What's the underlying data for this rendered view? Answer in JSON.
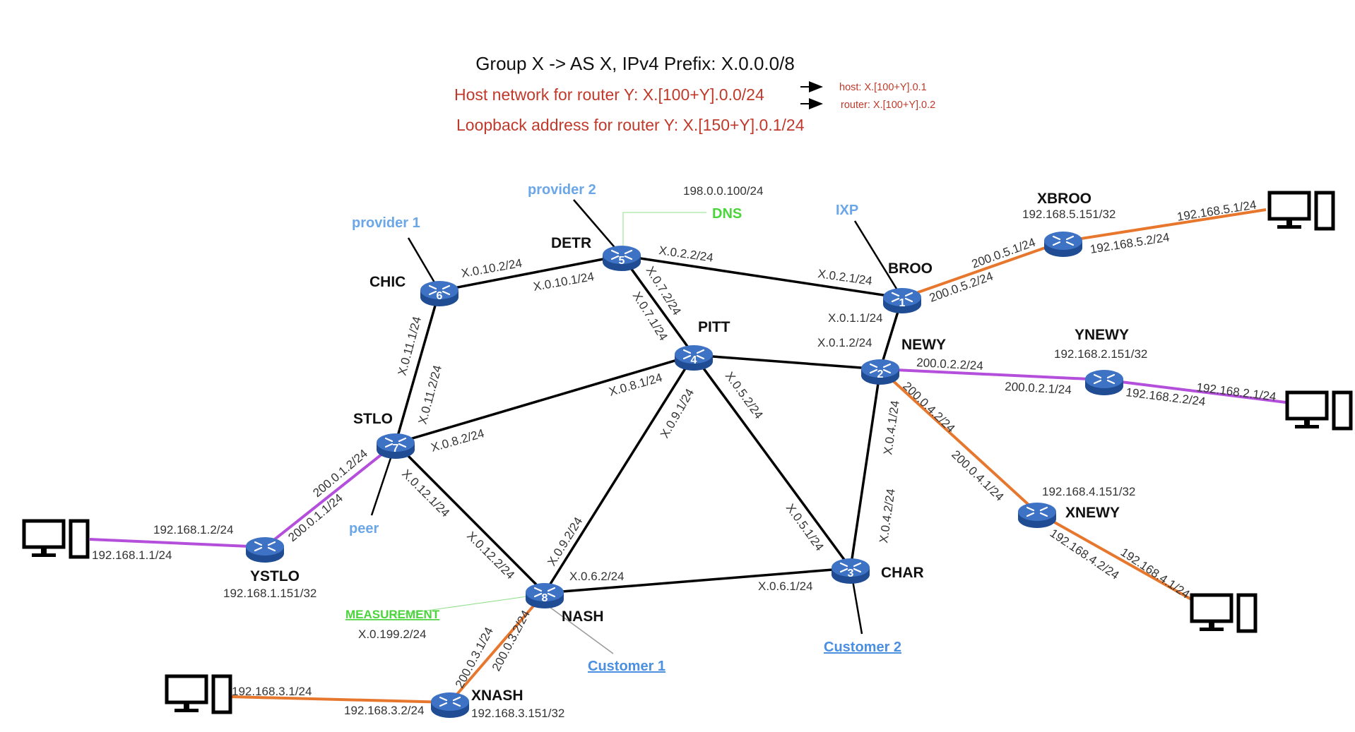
{
  "header": {
    "title": "Group X -> AS X, IPv4 Prefix: X.0.0.0/8",
    "host_network": "Host network for router Y: X.[100+Y].0.0/24",
    "host_note": "host: X.[100+Y].0.1",
    "router_note": "router: X.[100+Y].0.2",
    "loopback": "Loopback address for router Y: X.[150+Y].0.1/24"
  },
  "colors": {
    "internal_link": "#000000",
    "orange_link": "#e8772e",
    "purple_link": "#b44fdb",
    "router_body": "#2f63b3",
    "external_label": "#6aa6e8",
    "green_label": "#4cd43c",
    "header_red": "#c0392b"
  },
  "routers": {
    "broo": {
      "name": "BROO",
      "num": "1"
    },
    "newy": {
      "name": "NEWY",
      "num": "2"
    },
    "char": {
      "name": "CHAR",
      "num": "3"
    },
    "pitt": {
      "name": "PITT",
      "num": "4"
    },
    "detr": {
      "name": "DETR",
      "num": "5"
    },
    "chic": {
      "name": "CHIC",
      "num": "6"
    },
    "stlo": {
      "name": "STLO",
      "num": "7"
    },
    "nash": {
      "name": "NASH",
      "num": "8"
    },
    "xbroo": {
      "name": "XBROO",
      "loop": "192.168.5.151/32"
    },
    "ynewy": {
      "name": "YNEWY",
      "loop": "192.168.2.151/32"
    },
    "xnewy": {
      "name": "XNEWY",
      "loop": "192.168.4.151/32"
    },
    "ystlo": {
      "name": "YSTLO",
      "loop": "192.168.1.151/32"
    },
    "xnash": {
      "name": "XNASH",
      "loop": "192.168.3.151/32"
    }
  },
  "externals": {
    "provider1": "provider 1",
    "provider2": "provider 2",
    "ixp": "IXP",
    "peer": "peer",
    "customer1": "Customer 1",
    "customer2": "Customer 2",
    "dns": "DNS",
    "dns_ip": "198.0.0.100/24",
    "measurement": "MEASUREMENT",
    "measurement_ip": "X.0.199.2/24"
  },
  "links": {
    "chic_detr_a": "X.0.10.2/24",
    "chic_detr_b": "X.0.10.1/24",
    "detr_broo_a": "X.0.2.2/24",
    "detr_broo_b": "X.0.2.1/24",
    "detr_pitt_a": "X.0.7.2/24",
    "detr_pitt_b": "X.0.7.1/24",
    "broo_newy_a": "X.0.1.1/24",
    "broo_newy_b": "X.0.1.2/24",
    "chic_stlo_a": "X.0.11.1/24",
    "chic_stlo_b": "X.0.11.2/24",
    "stlo_pitt_a": "X.0.8.1/24",
    "stlo_pitt_b": "X.0.8.2/24",
    "pitt_nash_a": "X.0.9.1/24",
    "pitt_nash_b": "X.0.9.2/24",
    "pitt_char": "X.0.5.2/24",
    "newy_char_a": "X.0.4.1/24",
    "newy_char_b": "X.0.4.2/24",
    "char_pitt": "X.0.5.1/24",
    "stlo_nash_a": "X.0.12.1/24",
    "stlo_nash_b": "X.0.12.2/24",
    "nash_char_a": "X.0.6.2/24",
    "nash_char_b": "X.0.6.1/24",
    "broo_xbroo_a": "200.0.5.1/24",
    "broo_xbroo_b": "200.0.5.2/24",
    "xbroo_host_a": "192.168.5.1/24",
    "xbroo_host_b": "192.168.5.2/24",
    "newy_ynewy_a": "200.0.2.2/24",
    "newy_ynewy_b": "200.0.2.1/24",
    "ynewy_host_a": "192.168.2.1/24",
    "ynewy_host_b": "192.168.2.2/24",
    "newy_xnewy_a": "200.0.4.2/24",
    "newy_xnewy_b": "200.0.4.1/24",
    "xnewy_host_a": "192.168.4.2/24",
    "xnewy_host_b": "192.168.4.1/24",
    "stlo_ystlo_a": "200.0.1.2/24",
    "stlo_ystlo_b": "200.0.1.1/24",
    "ystlo_host_a": "192.168.1.2/24",
    "ystlo_host_b": "192.168.1.1/24",
    "nash_xnash_a": "200.0.3.1/24",
    "nash_xnash_b": "200.0.3.2/24",
    "xnash_host_a": "192.168.3.1/24",
    "xnash_host_b": "192.168.3.2/24"
  }
}
